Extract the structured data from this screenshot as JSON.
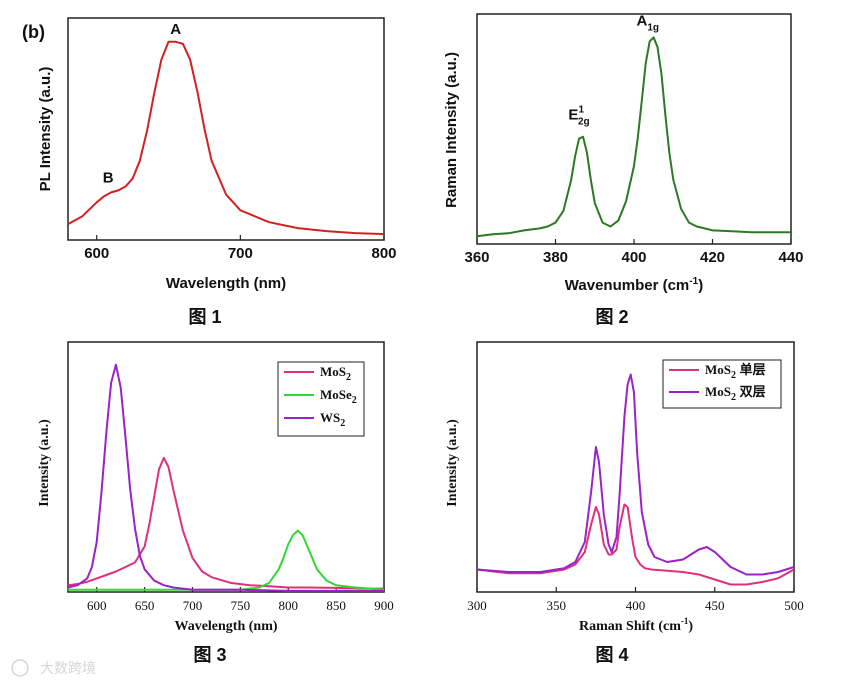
{
  "figure_captions": [
    "图 1",
    "图 2",
    "图 3",
    "图 4"
  ],
  "watermark": "大数跨境",
  "chart_data": [
    {
      "type": "line",
      "panel_label": "(b)",
      "xlabel": "Wavelength (nm)",
      "ylabel": "PL Intensity (a.u.)",
      "xlim": [
        580,
        800
      ],
      "xticks": [
        600,
        700,
        800
      ],
      "ylim": [
        0,
        1.12
      ],
      "series": [
        {
          "name": "PL",
          "color": "#d42020",
          "x": [
            580,
            590,
            600,
            605,
            610,
            615,
            620,
            625,
            630,
            635,
            640,
            645,
            650,
            655,
            660,
            665,
            670,
            675,
            680,
            690,
            700,
            720,
            740,
            760,
            780,
            800
          ],
          "y": [
            0.08,
            0.12,
            0.19,
            0.22,
            0.24,
            0.25,
            0.27,
            0.31,
            0.4,
            0.55,
            0.74,
            0.91,
            1.0,
            1.0,
            0.99,
            0.91,
            0.75,
            0.56,
            0.4,
            0.23,
            0.15,
            0.09,
            0.06,
            0.045,
            0.035,
            0.03
          ]
        }
      ],
      "annotations": [
        {
          "text": "A",
          "x": 655,
          "y": 1.04
        },
        {
          "text": "B",
          "x": 608,
          "y": 0.29
        }
      ]
    },
    {
      "type": "line",
      "xlabel": "Wavenumber (cm",
      "xlabel_sup": "-1",
      "xlabel_suffix": ")",
      "ylabel": "Raman Intensity (a.u.)",
      "xlim": [
        360,
        440
      ],
      "xticks": [
        360,
        380,
        400,
        420,
        440
      ],
      "ylim": [
        0,
        1.18
      ],
      "series": [
        {
          "name": "Raman",
          "color": "#2a7a22",
          "x": [
            360,
            364,
            368,
            372,
            376,
            378,
            380,
            382,
            384,
            385,
            386,
            387,
            388,
            389,
            390,
            392,
            394,
            396,
            398,
            400,
            401,
            402,
            403,
            404,
            405,
            406,
            407,
            408,
            409,
            410,
            412,
            414,
            416,
            418,
            420,
            425,
            430,
            435,
            440
          ],
          "y": [
            0.04,
            0.05,
            0.055,
            0.07,
            0.08,
            0.09,
            0.11,
            0.17,
            0.33,
            0.45,
            0.54,
            0.55,
            0.47,
            0.33,
            0.21,
            0.11,
            0.09,
            0.12,
            0.22,
            0.4,
            0.55,
            0.74,
            0.93,
            1.04,
            1.06,
            1.01,
            0.87,
            0.66,
            0.47,
            0.33,
            0.18,
            0.11,
            0.09,
            0.08,
            0.07,
            0.065,
            0.06,
            0.06,
            0.06
          ]
        }
      ],
      "annotations": [
        {
          "text": "E",
          "sup": "1",
          "sub": "2g",
          "x": 386,
          "y": 0.64
        },
        {
          "text": "A",
          "sub": "1g",
          "x": 403.5,
          "y": 1.12
        }
      ]
    },
    {
      "type": "line",
      "xlabel": "Wavelength (nm)",
      "ylabel": "Intensity (a.u.)",
      "xlim": [
        570,
        900
      ],
      "xticks": [
        600,
        650,
        700,
        750,
        800,
        850,
        900
      ],
      "ylim": [
        0,
        1.1
      ],
      "legend": "top-right",
      "series": [
        {
          "name": "MoS",
          "sub": "2",
          "color": "#e0307a",
          "x": [
            570,
            580,
            590,
            600,
            610,
            620,
            630,
            640,
            650,
            655,
            660,
            665,
            670,
            675,
            680,
            690,
            700,
            710,
            720,
            740,
            760,
            780,
            800,
            820,
            850,
            880,
            900
          ],
          "y": [
            0.03,
            0.035,
            0.045,
            0.06,
            0.075,
            0.09,
            0.11,
            0.13,
            0.2,
            0.3,
            0.42,
            0.54,
            0.59,
            0.55,
            0.45,
            0.27,
            0.15,
            0.09,
            0.065,
            0.04,
            0.03,
            0.025,
            0.02,
            0.02,
            0.018,
            0.015,
            0.015
          ]
        },
        {
          "name": "MoSe",
          "sub": "2",
          "color": "#33d633",
          "x": [
            570,
            600,
            700,
            750,
            770,
            780,
            790,
            795,
            800,
            805,
            810,
            815,
            820,
            830,
            840,
            850,
            870,
            900
          ],
          "y": [
            0.01,
            0.01,
            0.01,
            0.01,
            0.02,
            0.04,
            0.1,
            0.15,
            0.21,
            0.25,
            0.27,
            0.25,
            0.2,
            0.1,
            0.05,
            0.03,
            0.02,
            0.01
          ]
        },
        {
          "name": "WS",
          "sub": "2",
          "color": "#9a22c8",
          "x": [
            570,
            580,
            590,
            595,
            600,
            605,
            610,
            615,
            620,
            625,
            630,
            635,
            640,
            645,
            650,
            660,
            670,
            680,
            690,
            700,
            750,
            800,
            900
          ],
          "y": [
            0.02,
            0.03,
            0.06,
            0.11,
            0.22,
            0.44,
            0.7,
            0.92,
            1.0,
            0.9,
            0.68,
            0.45,
            0.28,
            0.16,
            0.1,
            0.05,
            0.03,
            0.02,
            0.015,
            0.01,
            0.01,
            0.005,
            0.005
          ]
        }
      ]
    },
    {
      "type": "line",
      "xlabel": "Raman Shift (cm",
      "xlabel_sup": "-1",
      "xlabel_suffix": ")",
      "ylabel": "Intensity (a.u.)",
      "xlim": [
        300,
        500
      ],
      "xticks": [
        300,
        350,
        400,
        450,
        500
      ],
      "ylim": [
        0,
        1.0
      ],
      "legend": "top-left",
      "series": [
        {
          "name": "MoS",
          "sub": "2",
          "suffix": " 单层",
          "color": "#e0307a",
          "x": [
            300,
            320,
            340,
            355,
            362,
            368,
            372,
            375,
            377,
            380,
            383,
            385,
            388,
            390,
            393,
            395,
            398,
            400,
            403,
            406,
            410,
            420,
            430,
            440,
            450,
            460,
            470,
            480,
            490,
            500
          ],
          "y": [
            0.09,
            0.075,
            0.075,
            0.09,
            0.11,
            0.16,
            0.27,
            0.34,
            0.31,
            0.19,
            0.15,
            0.15,
            0.17,
            0.26,
            0.35,
            0.34,
            0.21,
            0.14,
            0.11,
            0.095,
            0.09,
            0.085,
            0.08,
            0.07,
            0.05,
            0.03,
            0.03,
            0.04,
            0.055,
            0.09
          ]
        },
        {
          "name": "MoS",
          "sub": "2",
          "suffix": " 双层",
          "color": "#9a22c8",
          "x": [
            300,
            320,
            340,
            355,
            362,
            368,
            372,
            375,
            377,
            380,
            383,
            385,
            388,
            390,
            393,
            395,
            397,
            399,
            401,
            404,
            408,
            412,
            420,
            430,
            440,
            445,
            450,
            460,
            470,
            480,
            490,
            500
          ],
          "y": [
            0.09,
            0.08,
            0.08,
            0.095,
            0.12,
            0.2,
            0.4,
            0.58,
            0.52,
            0.31,
            0.19,
            0.16,
            0.22,
            0.39,
            0.7,
            0.83,
            0.87,
            0.8,
            0.56,
            0.32,
            0.19,
            0.14,
            0.12,
            0.13,
            0.17,
            0.18,
            0.16,
            0.1,
            0.07,
            0.07,
            0.08,
            0.1
          ]
        }
      ]
    }
  ]
}
